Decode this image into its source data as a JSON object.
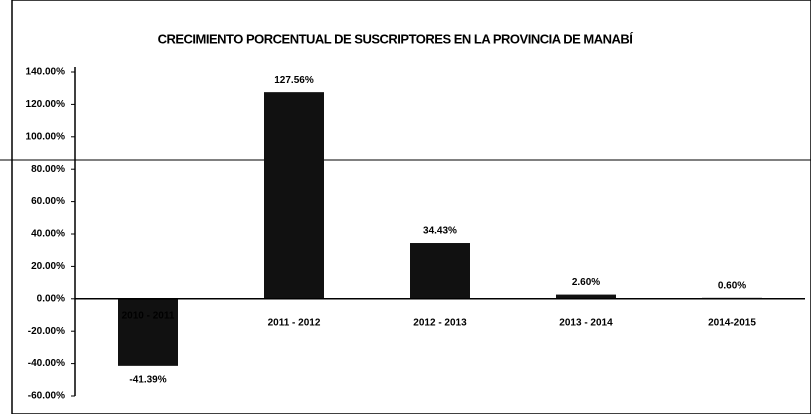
{
  "chart_data": {
    "type": "bar",
    "title": "CRECIMIENTO PORCENTUAL DE SUSCRIPTORES EN LA PROVINCIA DE MANABÍ",
    "categories": [
      "2010 - 2011",
      "2011 - 2012",
      "2012 - 2013",
      "2013 - 2014",
      "2014-2015"
    ],
    "values": [
      -41.39,
      127.56,
      34.43,
      2.6,
      0.6
    ],
    "value_labels": [
      "-41.39%",
      "127.56%",
      "34.43%",
      "2.60%",
      "0.60%"
    ],
    "color": "#111111",
    "ylim": [
      -60,
      140
    ],
    "yticks": [
      {
        "value": -60,
        "label": "-60.00%"
      },
      {
        "value": -40,
        "label": "-40.00%"
      },
      {
        "value": -20,
        "label": "-20.00%"
      },
      {
        "value": 0,
        "label": "0.00%"
      },
      {
        "value": 20,
        "label": "20.00%"
      },
      {
        "value": 40,
        "label": "40.00%"
      },
      {
        "value": 60,
        "label": "60.00%"
      },
      {
        "value": 80,
        "label": "80.00%"
      },
      {
        "value": 100,
        "label": "100.00%"
      },
      {
        "value": 120,
        "label": "120.00%"
      },
      {
        "value": 140,
        "label": "140.00%"
      }
    ]
  }
}
